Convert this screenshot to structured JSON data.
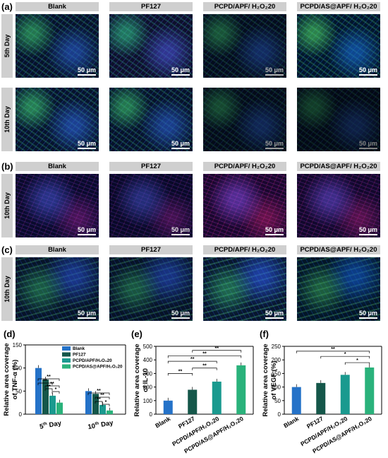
{
  "panels": {
    "a": {
      "letter": "(a)"
    },
    "b": {
      "letter": "(b)"
    },
    "c": {
      "letter": "(c)"
    },
    "d": {
      "letter": "(d)"
    },
    "e": {
      "letter": "(e)"
    },
    "f": {
      "letter": "(f)"
    }
  },
  "column_headers": [
    "Blank",
    "PF127",
    "PCPD/APF/ H₂O₂20",
    "PCPD/AS@APF/ H₂O₂20"
  ],
  "row_labels": {
    "a_row1": "5th Day",
    "a_row2": "10th Day",
    "b_row1": "10th Day",
    "c_row1": "10th Day"
  },
  "scale_bar": "50 μm",
  "colors": {
    "blue": "#2472c8",
    "darkgreen": "#15574a",
    "teal": "#1a9a8f",
    "green": "#2ab27b",
    "header_bg": "#cfcfcf"
  },
  "chart_data": [
    {
      "type": "bar",
      "panel": "d",
      "ylabel": "Relative area coverage of TNF-α (%)",
      "ylim": [
        0,
        150
      ],
      "yticks": [
        0,
        50,
        100,
        150
      ],
      "categories": [
        "5th Day",
        "10th Day"
      ],
      "series": [
        {
          "name": "Blank",
          "values": [
            100,
            50
          ]
        },
        {
          "name": "PF127",
          "values": [
            75,
            44
          ]
        },
        {
          "name": "PCPD/APF/H₂O₂20",
          "values": [
            40,
            20
          ]
        },
        {
          "name": "PCPD/AS@APF/H₂O₂20",
          "values": [
            25,
            8
          ]
        }
      ],
      "significance": [
        "**",
        "**",
        "**",
        "**",
        "*",
        "**",
        "**",
        "**",
        "*"
      ]
    },
    {
      "type": "bar",
      "panel": "e",
      "ylabel": "Relative area coverage of IL-10",
      "ylim": [
        0,
        500
      ],
      "yticks": [
        0,
        100,
        200,
        300,
        400,
        500
      ],
      "categories": [
        "Blank",
        "PF127",
        "PCPD/APF/H₂O₂20",
        "PCPD/AS@APF/H₂O₂20"
      ],
      "values": [
        100,
        180,
        240,
        360
      ],
      "significance": [
        "**",
        "**",
        "**",
        "**",
        "**"
      ]
    },
    {
      "type": "bar",
      "panel": "f",
      "ylabel": "Relative area coverage of VEGF (%)",
      "ylim": [
        0,
        250
      ],
      "yticks": [
        0,
        50,
        100,
        150,
        200,
        250
      ],
      "categories": [
        "Blank",
        "PF127",
        "PCPD/APF/H₂O₂20",
        "PCPD/AS@APF/H₂O₂20"
      ],
      "values": [
        100,
        115,
        145,
        172
      ],
      "significance": [
        "**",
        "*",
        "*"
      ]
    }
  ]
}
